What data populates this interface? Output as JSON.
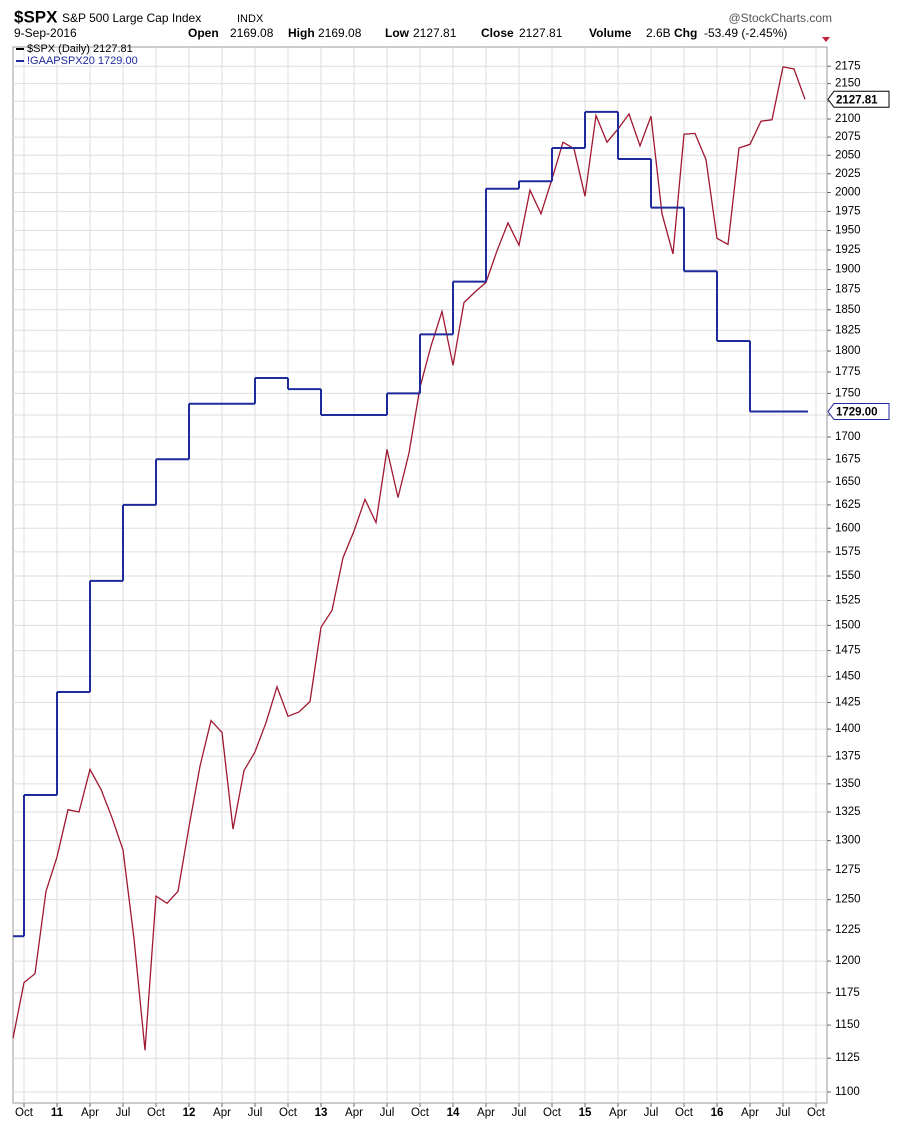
{
  "chart_data": {
    "type": "line",
    "symbol": "$SPX",
    "name": "S&P 500 Large Cap Index",
    "exchange": "INDX",
    "brand": "@StockCharts.com",
    "date": "9-Sep-2016",
    "quote": [
      {
        "label": "Open",
        "value": "2169.08"
      },
      {
        "label": "High",
        "value": "2169.08"
      },
      {
        "label": "Low",
        "value": "2127.81"
      },
      {
        "label": "Close",
        "value": "2127.81"
      },
      {
        "label": "Volume",
        "value": "2.6B"
      },
      {
        "label": "Chg",
        "value": "-53.49 (-2.45%)"
      }
    ],
    "log_scale": true,
    "grid": true,
    "xlim": [
      "2010-09",
      "2016-11"
    ],
    "ylim": [
      1092,
      2203
    ],
    "yticks": [
      1100,
      1125,
      1150,
      1175,
      1200,
      1225,
      1250,
      1275,
      1300,
      1325,
      1350,
      1375,
      1400,
      1425,
      1450,
      1475,
      1500,
      1525,
      1550,
      1575,
      1600,
      1625,
      1650,
      1675,
      1700,
      1725,
      1750,
      1775,
      1800,
      1825,
      1850,
      1875,
      1900,
      1925,
      1950,
      1975,
      2000,
      2025,
      2050,
      2075,
      2100,
      2125,
      2150,
      2175
    ],
    "xticks": [
      {
        "value": "2010-10",
        "label": "Oct"
      },
      {
        "value": "2011-01",
        "label": "11"
      },
      {
        "value": "2011-04",
        "label": "Apr"
      },
      {
        "value": "2011-07",
        "label": "Jul"
      },
      {
        "value": "2011-10",
        "label": "Oct"
      },
      {
        "value": "2012-01",
        "label": "12"
      },
      {
        "value": "2012-04",
        "label": "Apr"
      },
      {
        "value": "2012-07",
        "label": "Jul"
      },
      {
        "value": "2012-10",
        "label": "Oct"
      },
      {
        "value": "2013-01",
        "label": "13"
      },
      {
        "value": "2013-04",
        "label": "Apr"
      },
      {
        "value": "2013-07",
        "label": "Jul"
      },
      {
        "value": "2013-10",
        "label": "Oct"
      },
      {
        "value": "2014-01",
        "label": "14"
      },
      {
        "value": "2014-04",
        "label": "Apr"
      },
      {
        "value": "2014-07",
        "label": "Jul"
      },
      {
        "value": "2014-10",
        "label": "Oct"
      },
      {
        "value": "2015-01",
        "label": "15"
      },
      {
        "value": "2015-04",
        "label": "Apr"
      },
      {
        "value": "2015-07",
        "label": "Jul"
      },
      {
        "value": "2015-10",
        "label": "Oct"
      },
      {
        "value": "2016-01",
        "label": "16"
      },
      {
        "value": "2016-04",
        "label": "Apr"
      },
      {
        "value": "2016-07",
        "label": "Jul"
      },
      {
        "value": "2016-10",
        "label": "Oct"
      }
    ],
    "series": [
      {
        "name": "$SPX (Daily) 2127.81",
        "last_label": "2127.81",
        "color": "#a01830",
        "step": false,
        "x": [
          "2010-09",
          "2010-10",
          "2010-11",
          "2010-12",
          "2011-01",
          "2011-02",
          "2011-03",
          "2011-04",
          "2011-05",
          "2011-06",
          "2011-07",
          "2011-08",
          "2011-09",
          "2011-10",
          "2011-11",
          "2011-12",
          "2012-01",
          "2012-02",
          "2012-03",
          "2012-04",
          "2012-05",
          "2012-06",
          "2012-07",
          "2012-08",
          "2012-09",
          "2012-10",
          "2012-11",
          "2012-12",
          "2013-01",
          "2013-02",
          "2013-03",
          "2013-04",
          "2013-05",
          "2013-06",
          "2013-07",
          "2013-08",
          "2013-09",
          "2013-10",
          "2013-11",
          "2013-12",
          "2014-01",
          "2014-02",
          "2014-03",
          "2014-04",
          "2014-05",
          "2014-06",
          "2014-07",
          "2014-08",
          "2014-09",
          "2014-10",
          "2014-11",
          "2014-12",
          "2015-01",
          "2015-02",
          "2015-03",
          "2015-04",
          "2015-05",
          "2015-06",
          "2015-07",
          "2015-08",
          "2015-09",
          "2015-10",
          "2015-11",
          "2015-12",
          "2016-01",
          "2016-02",
          "2016-03",
          "2016-04",
          "2016-05",
          "2016-06",
          "2016-07",
          "2016-08",
          "2016-09"
        ],
        "values": [
          1140,
          1183,
          1190,
          1257,
          1286,
          1327,
          1325,
          1363,
          1345,
          1320,
          1292,
          1218,
          1131,
          1253,
          1247,
          1257,
          1312,
          1366,
          1408,
          1397,
          1310,
          1362,
          1379,
          1406,
          1440,
          1412,
          1416,
          1426,
          1498,
          1515,
          1569,
          1597,
          1631,
          1606,
          1686,
          1633,
          1682,
          1757,
          1806,
          1848,
          1783,
          1859,
          1872,
          1884,
          1924,
          1960,
          1931,
          2003,
          1972,
          2018,
          2068,
          2059,
          1995,
          2105,
          2068,
          2086,
          2107,
          2063,
          2104,
          1972,
          1920,
          2079,
          2080,
          2044,
          1940,
          1932,
          2060,
          2065,
          2097,
          2099,
          2174,
          2171,
          2127.81
        ]
      },
      {
        "name": "!GAAPSPX20 1729.00",
        "last_label": "1729.00",
        "color": "#1f2a9c",
        "step": true,
        "x": [
          "2010-09",
          "2010-10",
          "2011-01",
          "2011-04",
          "2011-07",
          "2011-10",
          "2012-01",
          "2012-07",
          "2012-10",
          "2013-01",
          "2013-07",
          "2013-10",
          "2014-01",
          "2014-04",
          "2014-07",
          "2014-10",
          "2015-01",
          "2015-04",
          "2015-07",
          "2015-10",
          "2016-01",
          "2016-04",
          "2016-09"
        ],
        "values": [
          1220,
          1340,
          1435,
          1545,
          1625,
          1675,
          1738,
          1768,
          1755,
          1725,
          1750,
          1820,
          1885,
          2005,
          2015,
          2060,
          2110,
          2045,
          1980,
          1898,
          1812,
          1729,
          1729
        ]
      }
    ]
  }
}
